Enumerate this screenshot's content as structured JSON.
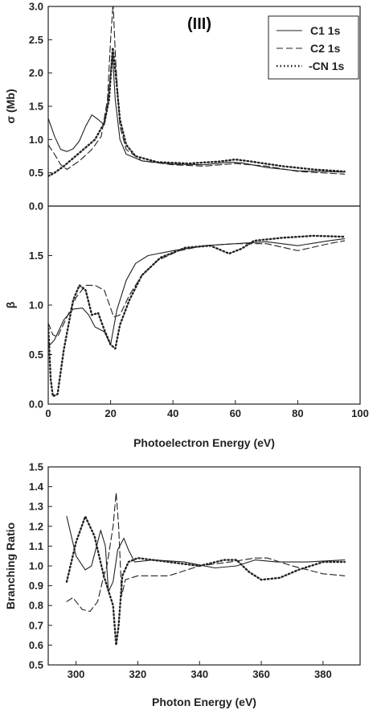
{
  "chart_data": [
    {
      "type": "line",
      "annotation": "(III)",
      "xlabel": "",
      "ylabel": "σ (Mb)",
      "xlim": [
        0,
        100
      ],
      "ylim": [
        0,
        3.0
      ],
      "x_ticks": [],
      "y_ticks": [
        "0.0",
        "0.5",
        "1.0",
        "1.5",
        "2.0",
        "2.5",
        "3.0"
      ],
      "legend": {
        "position": "top-right",
        "entries": [
          "C1 1s",
          "C2 1s",
          "-CN 1s"
        ]
      },
      "series": [
        {
          "name": "C1 1s",
          "style": "solid",
          "points": [
            [
              0,
              1.32
            ],
            [
              2,
              1.05
            ],
            [
              4,
              0.85
            ],
            [
              6,
              0.82
            ],
            [
              8,
              0.86
            ],
            [
              10,
              0.98
            ],
            [
              12,
              1.2
            ],
            [
              14,
              1.37
            ],
            [
              16,
              1.3
            ],
            [
              18,
              1.22
            ],
            [
              19,
              1.5
            ],
            [
              20,
              2.0
            ],
            [
              20.6,
              2.3
            ],
            [
              21.5,
              1.6
            ],
            [
              23,
              1.0
            ],
            [
              25,
              0.78
            ],
            [
              30,
              0.68
            ],
            [
              40,
              0.63
            ],
            [
              50,
              0.62
            ],
            [
              58,
              0.66
            ],
            [
              62,
              0.65
            ],
            [
              70,
              0.58
            ],
            [
              80,
              0.53
            ],
            [
              95,
              0.51
            ]
          ]
        },
        {
          "name": "C2 1s",
          "style": "dash",
          "points": [
            [
              0,
              0.92
            ],
            [
              2,
              0.78
            ],
            [
              4,
              0.62
            ],
            [
              6,
              0.55
            ],
            [
              10,
              0.68
            ],
            [
              14,
              0.85
            ],
            [
              17,
              1.05
            ],
            [
              19,
              1.6
            ],
            [
              20,
              2.5
            ],
            [
              20.8,
              3.05
            ],
            [
              21.6,
              2.2
            ],
            [
              23,
              1.2
            ],
            [
              25,
              0.85
            ],
            [
              30,
              0.68
            ],
            [
              40,
              0.62
            ],
            [
              50,
              0.6
            ],
            [
              60,
              0.64
            ],
            [
              70,
              0.6
            ],
            [
              80,
              0.52
            ],
            [
              95,
              0.48
            ]
          ]
        },
        {
          "name": "-CN 1s",
          "style": "dot",
          "points": [
            [
              0,
              0.45
            ],
            [
              2,
              0.5
            ],
            [
              5,
              0.6
            ],
            [
              10,
              0.8
            ],
            [
              15,
              1.0
            ],
            [
              18,
              1.25
            ],
            [
              19.5,
              1.6
            ],
            [
              20.7,
              2.38
            ],
            [
              21.6,
              2.0
            ],
            [
              23,
              1.3
            ],
            [
              25,
              0.92
            ],
            [
              28,
              0.75
            ],
            [
              35,
              0.66
            ],
            [
              45,
              0.64
            ],
            [
              55,
              0.67
            ],
            [
              60,
              0.7
            ],
            [
              65,
              0.67
            ],
            [
              75,
              0.6
            ],
            [
              85,
              0.55
            ],
            [
              95,
              0.52
            ]
          ]
        }
      ]
    },
    {
      "type": "line",
      "xlabel": "Photoelectron Energy (eV)",
      "ylabel": "β",
      "xlim": [
        0,
        100
      ],
      "ylim": [
        0,
        2.0
      ],
      "x_ticks": [
        "0",
        "20",
        "40",
        "60",
        "80",
        "100"
      ],
      "y_ticks": [
        "0.0",
        "0.5",
        "1.0",
        "1.5"
      ],
      "series": [
        {
          "name": "C1 1s",
          "style": "solid",
          "points": [
            [
              0,
              0.58
            ],
            [
              2,
              0.65
            ],
            [
              5,
              0.85
            ],
            [
              8,
              0.96
            ],
            [
              11,
              0.97
            ],
            [
              13,
              0.9
            ],
            [
              15,
              0.78
            ],
            [
              18,
              0.73
            ],
            [
              20,
              0.6
            ],
            [
              22,
              0.95
            ],
            [
              25,
              1.25
            ],
            [
              28,
              1.42
            ],
            [
              32,
              1.5
            ],
            [
              40,
              1.55
            ],
            [
              50,
              1.6
            ],
            [
              60,
              1.62
            ],
            [
              70,
              1.64
            ],
            [
              80,
              1.6
            ],
            [
              90,
              1.65
            ],
            [
              95,
              1.67
            ]
          ]
        },
        {
          "name": "C2 1s",
          "style": "dash",
          "points": [
            [
              0,
              0.82
            ],
            [
              1.5,
              0.7
            ],
            [
              3,
              0.68
            ],
            [
              6,
              0.88
            ],
            [
              9,
              1.08
            ],
            [
              12,
              1.2
            ],
            [
              15,
              1.2
            ],
            [
              18,
              1.15
            ],
            [
              21,
              0.88
            ],
            [
              23,
              0.9
            ],
            [
              26,
              1.1
            ],
            [
              30,
              1.3
            ],
            [
              35,
              1.45
            ],
            [
              42,
              1.55
            ],
            [
              50,
              1.6
            ],
            [
              60,
              1.62
            ],
            [
              70,
              1.62
            ],
            [
              80,
              1.55
            ],
            [
              90,
              1.62
            ],
            [
              95,
              1.65
            ]
          ]
        },
        {
          "name": "-CN 1s",
          "style": "dot",
          "points": [
            [
              0,
              0.8
            ],
            [
              0.8,
              0.25
            ],
            [
              1.5,
              0.08
            ],
            [
              3,
              0.1
            ],
            [
              5,
              0.55
            ],
            [
              8,
              1.05
            ],
            [
              10,
              1.2
            ],
            [
              12,
              1.15
            ],
            [
              14,
              0.9
            ],
            [
              16,
              0.92
            ],
            [
              18,
              0.75
            ],
            [
              20,
              0.6
            ],
            [
              21.5,
              0.56
            ],
            [
              23,
              0.8
            ],
            [
              26,
              1.05
            ],
            [
              30,
              1.3
            ],
            [
              36,
              1.48
            ],
            [
              44,
              1.58
            ],
            [
              52,
              1.6
            ],
            [
              58,
              1.52
            ],
            [
              62,
              1.57
            ],
            [
              66,
              1.65
            ],
            [
              75,
              1.68
            ],
            [
              85,
              1.7
            ],
            [
              95,
              1.69
            ]
          ]
        }
      ]
    },
    {
      "type": "line",
      "xlabel": "Photon Energy (eV)",
      "ylabel": "Branching Ratio",
      "xlim": [
        291,
        392
      ],
      "ylim": [
        0.5,
        1.5
      ],
      "x_ticks": [
        "300",
        "320",
        "340",
        "360",
        "380"
      ],
      "y_ticks": [
        "0.5",
        "0.6",
        "0.7",
        "0.8",
        "0.9",
        "1.0",
        "1.1",
        "1.2",
        "1.3",
        "1.4",
        "1.5"
      ],
      "series": [
        {
          "name": "C1 1s",
          "style": "solid",
          "points": [
            [
              297,
              1.25
            ],
            [
              300,
              1.05
            ],
            [
              303,
              0.98
            ],
            [
              305,
              1.0
            ],
            [
              308,
              1.18
            ],
            [
              309.5,
              1.1
            ],
            [
              310.5,
              0.87
            ],
            [
              312,
              0.92
            ],
            [
              313.5,
              1.08
            ],
            [
              315.5,
              1.14
            ],
            [
              317,
              1.08
            ],
            [
              319,
              1.02
            ],
            [
              325,
              1.03
            ],
            [
              335,
              1.02
            ],
            [
              345,
              0.99
            ],
            [
              352,
              1.0
            ],
            [
              358,
              1.03
            ],
            [
              365,
              1.02
            ],
            [
              375,
              1.02
            ],
            [
              387,
              1.03
            ]
          ]
        },
        {
          "name": "C2 1s",
          "style": "dash",
          "points": [
            [
              297,
              0.82
            ],
            [
              299,
              0.84
            ],
            [
              302,
              0.78
            ],
            [
              304.5,
              0.77
            ],
            [
              307,
              0.82
            ],
            [
              309,
              0.95
            ],
            [
              310,
              1.0
            ],
            [
              312,
              1.2
            ],
            [
              313,
              1.37
            ],
            [
              313.8,
              1.2
            ],
            [
              314.8,
              0.85
            ],
            [
              316,
              0.93
            ],
            [
              320,
              0.95
            ],
            [
              330,
              0.95
            ],
            [
              340,
              1.0
            ],
            [
              350,
              1.02
            ],
            [
              358,
              1.04
            ],
            [
              362,
              1.04
            ],
            [
              370,
              1.0
            ],
            [
              380,
              0.96
            ],
            [
              387,
              0.95
            ]
          ]
        },
        {
          "name": "-CN 1s",
          "style": "dot",
          "points": [
            [
              297,
              0.92
            ],
            [
              300,
              1.12
            ],
            [
              303,
              1.25
            ],
            [
              306,
              1.15
            ],
            [
              309,
              0.95
            ],
            [
              311,
              0.85
            ],
            [
              312,
              0.8
            ],
            [
              313,
              0.6
            ],
            [
              313.8,
              0.7
            ],
            [
              315,
              0.95
            ],
            [
              317,
              1.02
            ],
            [
              320,
              1.04
            ],
            [
              330,
              1.02
            ],
            [
              340,
              1.0
            ],
            [
              348,
              1.03
            ],
            [
              352,
              1.03
            ],
            [
              356,
              0.97
            ],
            [
              360,
              0.93
            ],
            [
              366,
              0.94
            ],
            [
              372,
              0.98
            ],
            [
              380,
              1.02
            ],
            [
              387,
              1.02
            ]
          ]
        }
      ]
    }
  ]
}
